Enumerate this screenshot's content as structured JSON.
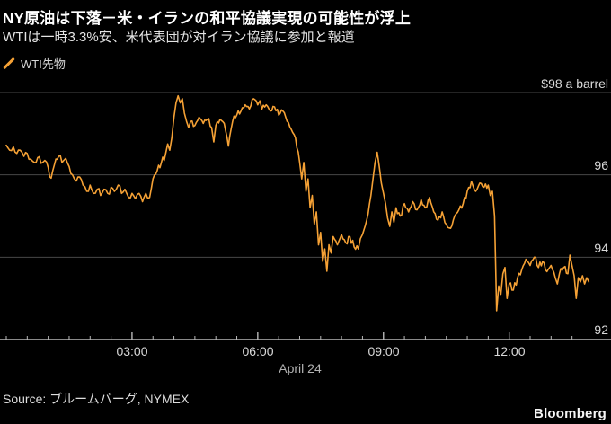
{
  "header": {
    "title": "NY原油は下落－米・イランの和平協議実現の可能性が浮上",
    "subtitle": "WTIは一時3.3%安、米代表団が対イラン協議に参加と報道"
  },
  "legend": {
    "label": "WTI先物"
  },
  "footer": {
    "source": "Source: ブルームバーグ, NYMEX",
    "brand": "Bloomberg"
  },
  "colors": {
    "background": "#000000",
    "series_orange": "#F5A135",
    "gridline": "#474747",
    "axis_line": "#b8b8b8"
  },
  "chart_data": {
    "type": "line",
    "title": "NY原油は下落－米・イランの和平協議実現の可能性が浮上",
    "subtitle": "WTIは一時3.3%安、米代表団が対イラン協議に参加と報道",
    "legend_position": "top-left",
    "grid": "horizontal",
    "x_axis": {
      "title": "April 24",
      "unit": "hour of day",
      "range_hours": [
        0,
        14
      ],
      "minor_tick_interval_hours": 0.5,
      "major_tick_hours": [
        3,
        6,
        9,
        12
      ],
      "tick_labels": [
        "03:00",
        "06:00",
        "09:00",
        "12:00"
      ]
    },
    "y_axis": {
      "unit": "USD per barrel",
      "side": "right",
      "range": [
        91.95,
        98.15
      ],
      "ticks": [
        {
          "value": 98,
          "label": "$98 a barrel"
        },
        {
          "value": 96,
          "label": "96"
        },
        {
          "value": 94,
          "label": "94"
        },
        {
          "value": 92,
          "label": "92"
        }
      ]
    },
    "series": [
      {
        "name": "WTI先物",
        "color": "#F5A135",
        "tick_jitter": 0.1,
        "points": [
          [
            0.0,
            96.72
          ],
          [
            0.08,
            96.6
          ],
          [
            0.17,
            96.68
          ],
          [
            0.25,
            96.52
          ],
          [
            0.33,
            96.6
          ],
          [
            0.42,
            96.45
          ],
          [
            0.5,
            96.52
          ],
          [
            0.58,
            96.38
          ],
          [
            0.67,
            96.3
          ],
          [
            0.75,
            96.42
          ],
          [
            0.83,
            96.28
          ],
          [
            0.92,
            96.35
          ],
          [
            1.0,
            96.18
          ],
          [
            1.07,
            95.92
          ],
          [
            1.15,
            96.25
          ],
          [
            1.25,
            96.45
          ],
          [
            1.33,
            96.3
          ],
          [
            1.42,
            96.4
          ],
          [
            1.5,
            96.2
          ],
          [
            1.58,
            96.0
          ],
          [
            1.67,
            95.85
          ],
          [
            1.75,
            95.95
          ],
          [
            1.83,
            95.75
          ],
          [
            1.92,
            95.6
          ],
          [
            2.0,
            95.75
          ],
          [
            2.08,
            95.55
          ],
          [
            2.17,
            95.65
          ],
          [
            2.25,
            95.5
          ],
          [
            2.33,
            95.65
          ],
          [
            2.42,
            95.55
          ],
          [
            2.5,
            95.7
          ],
          [
            2.58,
            95.6
          ],
          [
            2.67,
            95.75
          ],
          [
            2.75,
            95.55
          ],
          [
            2.83,
            95.65
          ],
          [
            2.92,
            95.45
          ],
          [
            3.0,
            95.55
          ],
          [
            3.08,
            95.42
          ],
          [
            3.17,
            95.55
          ],
          [
            3.25,
            95.35
          ],
          [
            3.33,
            95.55
          ],
          [
            3.42,
            95.45
          ],
          [
            3.5,
            95.9
          ],
          [
            3.6,
            96.1
          ],
          [
            3.7,
            96.3
          ],
          [
            3.8,
            96.5
          ],
          [
            3.85,
            96.75
          ],
          [
            3.9,
            96.6
          ],
          [
            3.95,
            96.9
          ],
          [
            4.0,
            97.4
          ],
          [
            4.05,
            97.75
          ],
          [
            4.1,
            97.92
          ],
          [
            4.15,
            97.75
          ],
          [
            4.2,
            97.85
          ],
          [
            4.25,
            97.5
          ],
          [
            4.3,
            97.3
          ],
          [
            4.35,
            97.15
          ],
          [
            4.4,
            97.3
          ],
          [
            4.5,
            97.2
          ],
          [
            4.6,
            97.4
          ],
          [
            4.7,
            97.25
          ],
          [
            4.8,
            97.35
          ],
          [
            4.9,
            97.15
          ],
          [
            4.95,
            96.8
          ],
          [
            5.0,
            97.2
          ],
          [
            5.1,
            97.35
          ],
          [
            5.2,
            97.25
          ],
          [
            5.3,
            96.7
          ],
          [
            5.4,
            97.3
          ],
          [
            5.5,
            97.45
          ],
          [
            5.6,
            97.55
          ],
          [
            5.7,
            97.7
          ],
          [
            5.8,
            97.6
          ],
          [
            5.9,
            97.85
          ],
          [
            6.0,
            97.7
          ],
          [
            6.05,
            97.8
          ],
          [
            6.1,
            97.6
          ],
          [
            6.2,
            97.7
          ],
          [
            6.3,
            97.55
          ],
          [
            6.4,
            97.65
          ],
          [
            6.5,
            97.45
          ],
          [
            6.6,
            97.55
          ],
          [
            6.7,
            97.3
          ],
          [
            6.8,
            97.1
          ],
          [
            6.9,
            96.9
          ],
          [
            7.0,
            96.3
          ],
          [
            7.05,
            95.9
          ],
          [
            7.1,
            96.3
          ],
          [
            7.15,
            95.6
          ],
          [
            7.2,
            95.9
          ],
          [
            7.25,
            95.2
          ],
          [
            7.3,
            95.5
          ],
          [
            7.35,
            94.8
          ],
          [
            7.4,
            95.1
          ],
          [
            7.45,
            94.3
          ],
          [
            7.5,
            94.6
          ],
          [
            7.55,
            93.9
          ],
          [
            7.6,
            94.2
          ],
          [
            7.65,
            93.66
          ],
          [
            7.7,
            94.3
          ],
          [
            7.75,
            94.1
          ],
          [
            7.8,
            94.5
          ],
          [
            7.9,
            94.3
          ],
          [
            8.0,
            94.55
          ],
          [
            8.1,
            94.35
          ],
          [
            8.2,
            94.5
          ],
          [
            8.3,
            94.25
          ],
          [
            8.4,
            94.2
          ],
          [
            8.45,
            94.45
          ],
          [
            8.5,
            94.55
          ],
          [
            8.6,
            94.9
          ],
          [
            8.7,
            95.5
          ],
          [
            8.75,
            95.9
          ],
          [
            8.8,
            96.3
          ],
          [
            8.85,
            96.55
          ],
          [
            8.9,
            96.2
          ],
          [
            8.95,
            95.8
          ],
          [
            9.0,
            95.55
          ],
          [
            9.05,
            95.3
          ],
          [
            9.1,
            94.95
          ],
          [
            9.15,
            94.75
          ],
          [
            9.2,
            95.1
          ],
          [
            9.25,
            94.85
          ],
          [
            9.3,
            95.2
          ],
          [
            9.4,
            95.0
          ],
          [
            9.5,
            95.3
          ],
          [
            9.6,
            95.1
          ],
          [
            9.7,
            95.35
          ],
          [
            9.8,
            95.15
          ],
          [
            9.9,
            95.4
          ],
          [
            10.0,
            95.2
          ],
          [
            10.1,
            95.45
          ],
          [
            10.2,
            95.1
          ],
          [
            10.3,
            94.9
          ],
          [
            10.4,
            95.1
          ],
          [
            10.5,
            94.8
          ],
          [
            10.6,
            94.7
          ],
          [
            10.7,
            95.0
          ],
          [
            10.8,
            95.15
          ],
          [
            10.9,
            95.3
          ],
          [
            11.0,
            95.6
          ],
          [
            11.1,
            95.84
          ],
          [
            11.2,
            95.6
          ],
          [
            11.3,
            95.8
          ],
          [
            11.4,
            95.7
          ],
          [
            11.5,
            95.75
          ],
          [
            11.55,
            95.5
          ],
          [
            11.6,
            95.6
          ],
          [
            11.65,
            95.0
          ],
          [
            11.7,
            92.7
          ],
          [
            11.75,
            93.3
          ],
          [
            11.8,
            93.1
          ],
          [
            11.85,
            93.6
          ],
          [
            11.9,
            93.75
          ],
          [
            11.95,
            93.0
          ],
          [
            12.0,
            93.35
          ],
          [
            12.1,
            93.2
          ],
          [
            12.2,
            93.5
          ],
          [
            12.3,
            93.7
          ],
          [
            12.4,
            93.95
          ],
          [
            12.5,
            93.8
          ],
          [
            12.6,
            94.0
          ],
          [
            12.7,
            93.75
          ],
          [
            12.8,
            93.9
          ],
          [
            12.9,
            93.65
          ],
          [
            13.0,
            93.8
          ],
          [
            13.1,
            93.5
          ],
          [
            13.15,
            93.35
          ],
          [
            13.2,
            93.6
          ],
          [
            13.3,
            93.75
          ],
          [
            13.4,
            93.6
          ],
          [
            13.45,
            94.05
          ],
          [
            13.5,
            93.8
          ],
          [
            13.55,
            93.55
          ],
          [
            13.6,
            93.0
          ],
          [
            13.65,
            93.5
          ],
          [
            13.7,
            93.4
          ],
          [
            13.75,
            93.55
          ],
          [
            13.8,
            93.35
          ],
          [
            13.85,
            93.5
          ],
          [
            13.9,
            93.4
          ]
        ]
      }
    ]
  }
}
